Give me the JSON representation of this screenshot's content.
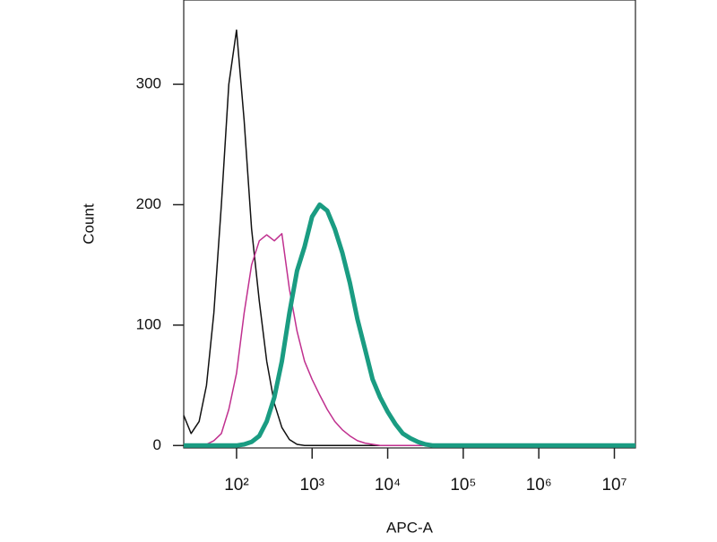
{
  "chart_data": {
    "type": "line",
    "x_label": "APC-A",
    "y_label": "Count",
    "x_log": true,
    "xlim": [
      20,
      19000000
    ],
    "ylim": [
      -2,
      370
    ],
    "xticks": [
      {
        "value": 100,
        "label": "10²"
      },
      {
        "value": 1000,
        "label": "10³"
      },
      {
        "value": 10000,
        "label": "10⁴"
      },
      {
        "value": 100000,
        "label": "10⁵"
      },
      {
        "value": 1000000,
        "label": "10⁶"
      },
      {
        "value": 10000000,
        "label": "10⁷"
      }
    ],
    "yticks": [
      0,
      100,
      200,
      300
    ],
    "x": [
      20,
      25,
      32,
      40,
      50,
      63,
      79,
      100,
      126,
      158,
      200,
      251,
      316,
      398,
      501,
      631,
      794,
      1000,
      1259,
      1585,
      1995,
      2512,
      3162,
      3981,
      5012,
      6310,
      7943,
      10000,
      12589,
      15849,
      19953,
      25119,
      31623,
      39811,
      50119,
      100000,
      1000000,
      19000000
    ],
    "series": [
      {
        "color": "#111111",
        "width": 1.5,
        "values": [
          25,
          10,
          20,
          50,
          110,
          200,
          300,
          345,
          270,
          180,
          120,
          70,
          35,
          15,
          5,
          1,
          0,
          0,
          0,
          0,
          0,
          0,
          0,
          0,
          0,
          0,
          0,
          0,
          0,
          0,
          0,
          0,
          0,
          0,
          0,
          0,
          0,
          0
        ]
      },
      {
        "color": "#c0308f",
        "width": 1.5,
        "values": [
          0,
          0,
          0,
          1,
          4,
          10,
          30,
          60,
          110,
          150,
          170,
          175,
          170,
          176,
          130,
          95,
          70,
          55,
          42,
          30,
          20,
          13,
          8,
          4,
          2,
          1,
          0,
          0,
          0,
          0,
          0,
          0,
          0,
          0,
          0,
          0,
          0,
          0
        ]
      },
      {
        "color": "#1a9c82",
        "width": 5,
        "values": [
          0,
          0,
          0,
          0,
          0,
          0,
          0,
          0,
          1,
          3,
          8,
          20,
          40,
          70,
          110,
          145,
          165,
          190,
          200,
          195,
          180,
          160,
          135,
          105,
          80,
          55,
          40,
          28,
          18,
          10,
          6,
          3,
          1,
          0,
          0,
          0,
          0,
          0
        ]
      }
    ]
  }
}
